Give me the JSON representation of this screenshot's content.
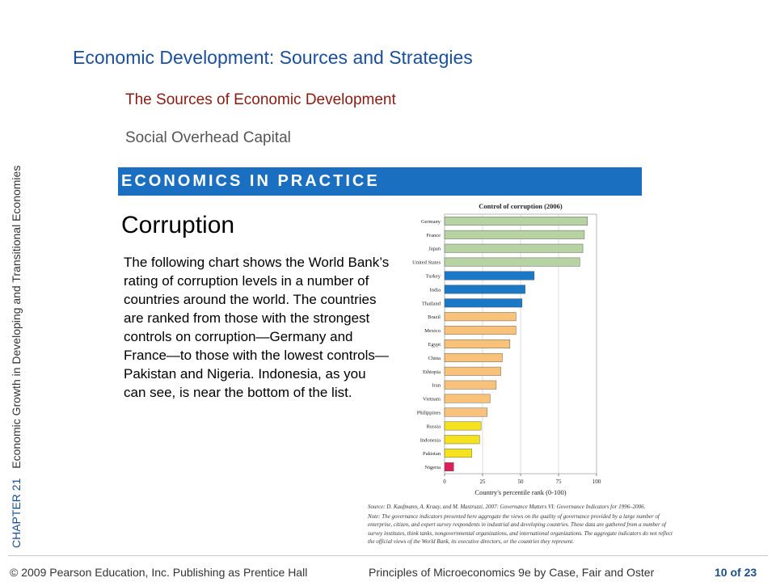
{
  "sidebar": {
    "chapter": "CHAPTER 21",
    "chapter_title": "Economic Growth in Developing and Transitional Economies"
  },
  "header": {
    "title": "Economic Development:  Sources and Strategies",
    "subtitle": "The Sources of Economic Development",
    "subsubtitle": "Social Overhead Capital"
  },
  "banner": {
    "label": "ECONOMICS IN PRACTICE"
  },
  "article": {
    "heading": "Corruption",
    "body": "The following chart shows the World Bank’s rating of corruption levels in a number of countries around the world. The countries are ranked from those with the strongest controls on corruption—Germany and France—to those with the lowest controls—Pakistan and Nigeria. Indonesia, as you can see, is near the bottom of the list."
  },
  "chart_data": {
    "type": "bar",
    "orientation": "horizontal",
    "title": "Control of corruption (2006)",
    "xlabel": "Country's percentile rank (0-100)",
    "ylabel": "",
    "xlim": [
      0,
      100
    ],
    "xticks": [
      "0",
      "25",
      "50",
      "75",
      "100"
    ],
    "grid": true,
    "categories": [
      "Germany",
      "France",
      "Japan",
      "United States",
      "Turkey",
      "India",
      "Thailand",
      "Brazil",
      "Mexico",
      "Egypt",
      "China",
      "Ethiopia",
      "Iran",
      "Vietnam",
      "Philippines",
      "Russia",
      "Indonesia",
      "Pakistan",
      "Nigeria"
    ],
    "values": [
      94,
      92,
      91,
      89,
      59,
      53,
      51,
      47,
      47,
      43,
      38,
      37,
      34,
      30,
      28,
      24,
      23,
      18,
      6
    ],
    "colors": [
      "#b7d3a3",
      "#b7d3a3",
      "#b7d3a3",
      "#b7d3a3",
      "#1a78c6",
      "#1a78c6",
      "#1a78c6",
      "#f8c27a",
      "#f8c27a",
      "#f8c27a",
      "#f8c27a",
      "#f8c27a",
      "#f8c27a",
      "#f8c27a",
      "#f8c27a",
      "#f4e21e",
      "#f4e21e",
      "#f4e21e",
      "#e0205a"
    ]
  },
  "source": {
    "line1": "Source: D. Kaufmann, A. Kraay, and M. Mastruzzi, 2007: Governance Matters VI: Governance Indicators for 1996–2006.",
    "line2": "Note: The governance indicators presented here aggregate the views on the quality of governance provided by a large number of enterprise, citizen, and expert survey respondents in industrial and developing countries. These data are gathered from a number of survey institutes, think tanks, nongovernmental organizations, and international organizations. The aggregate indicators do not reflect the official views of the World Bank, its executive directors, or the countries they represent."
  },
  "footer": {
    "copyright": "© 2009 Pearson Education, Inc. Publishing as Prentice Hall",
    "book": "Principles of Microeconomics 9e by Case, Fair and Oster",
    "page": "10 of 23"
  }
}
